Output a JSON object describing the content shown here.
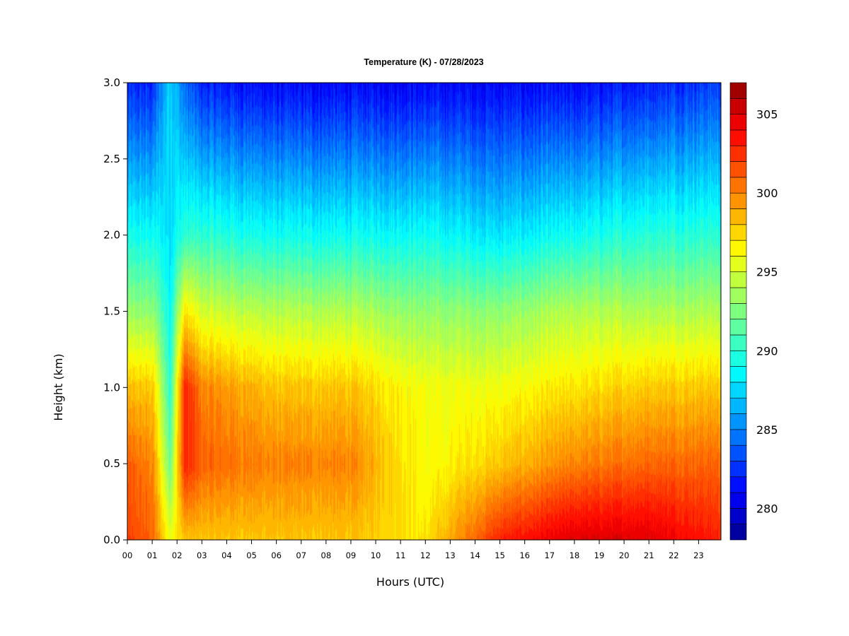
{
  "chart_data": {
    "type": "heatmap",
    "title": "Temperature (K) - 07/28/2023",
    "xlabel": "Hours (UTC)",
    "ylabel": "Height (km)",
    "x_ticks": [
      "00",
      "01",
      "02",
      "03",
      "04",
      "05",
      "06",
      "07",
      "08",
      "09",
      "10",
      "11",
      "12",
      "13",
      "14",
      "15",
      "16",
      "17",
      "18",
      "19",
      "20",
      "21",
      "22",
      "23"
    ],
    "y_ticks": [
      "0.0",
      "0.5",
      "1.0",
      "1.5",
      "2.0",
      "2.5",
      "3.0"
    ],
    "xlim": [
      0,
      23.9
    ],
    "ylim": [
      0,
      3.0
    ],
    "colorbar": {
      "label_values": [
        "280",
        "285",
        "290",
        "295",
        "300",
        "305"
      ],
      "vmin": 278,
      "vmax": 307,
      "levels": 29,
      "colors": [
        "#00008b",
        "#0000cd",
        "#0000ff",
        "#0033ff",
        "#0066ff",
        "#0099ff",
        "#00ccff",
        "#00ffff",
        "#33ffcc",
        "#66ff99",
        "#99ff66",
        "#ccff33",
        "#ffff00",
        "#ffcc00",
        "#ff9900",
        "#ff6600",
        "#ff3300",
        "#ff0000",
        "#cc0000",
        "#8b0000"
      ]
    },
    "temperature_profile_by_hour": [
      {
        "hour": 0,
        "sfc": 302,
        "h05": 301,
        "h10": 298,
        "h15": 293,
        "h20": 289,
        "h30": 282
      },
      {
        "hour": 1,
        "sfc": 301,
        "h05": 300,
        "h10": 298,
        "h15": 293,
        "h20": 289,
        "h30": 282
      },
      {
        "hour": 1.7,
        "sfc": 296,
        "h05": 292,
        "h10": 290,
        "h15": 289,
        "h20": 288,
        "h30": 288
      },
      {
        "hour": 2.3,
        "sfc": 298,
        "h05": 303,
        "h10": 303,
        "h15": 297,
        "h20": 290,
        "h30": 284
      },
      {
        "hour": 3,
        "sfc": 298,
        "h05": 301,
        "h10": 300,
        "h15": 295,
        "h20": 290,
        "h30": 282
      },
      {
        "hour": 6,
        "sfc": 298,
        "h05": 300,
        "h10": 298,
        "h15": 294,
        "h20": 289,
        "h30": 281
      },
      {
        "hour": 9,
        "sfc": 298,
        "h05": 300,
        "h10": 298,
        "h15": 294,
        "h20": 289,
        "h30": 281
      },
      {
        "hour": 12,
        "sfc": 297,
        "h05": 296,
        "h10": 296,
        "h15": 293,
        "h20": 289,
        "h30": 281
      },
      {
        "hour": 15,
        "sfc": 303,
        "h05": 298,
        "h10": 296,
        "h15": 293,
        "h20": 288,
        "h30": 281
      },
      {
        "hour": 18,
        "sfc": 305,
        "h05": 300,
        "h10": 297,
        "h15": 294,
        "h20": 289,
        "h30": 281
      },
      {
        "hour": 21,
        "sfc": 305,
        "h05": 301,
        "h10": 298,
        "h15": 294,
        "h20": 290,
        "h30": 282
      },
      {
        "hour": 23.9,
        "sfc": 303,
        "h05": 301,
        "h10": 298,
        "h15": 294,
        "h20": 290,
        "h30": 283
      }
    ]
  }
}
